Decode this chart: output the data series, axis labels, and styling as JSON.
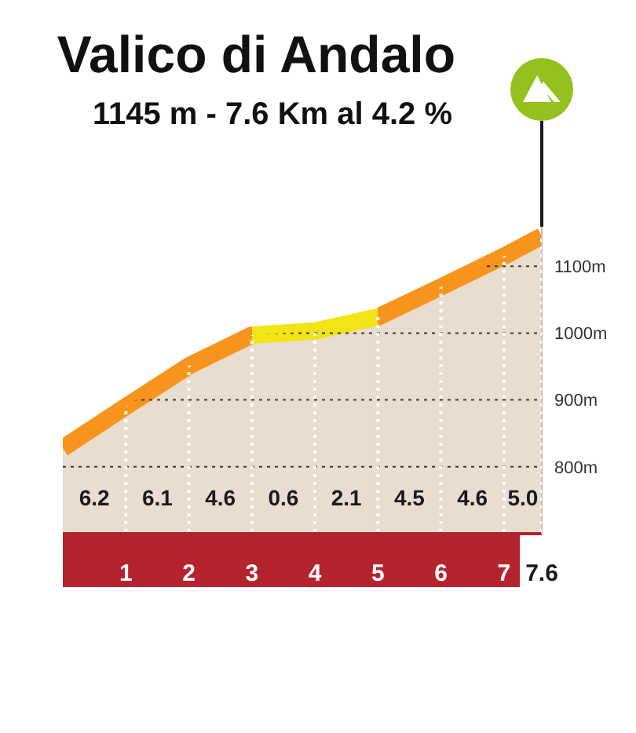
{
  "chart_data": {
    "type": "area",
    "title": "Valico di Andalo",
    "subtitle": "1145 m - 7.6 Km al 4.2 %",
    "x": [
      0,
      1,
      2,
      3,
      4,
      5,
      6,
      7,
      7.6
    ],
    "values": [
      828,
      890,
      951,
      997,
      1003,
      1024,
      1069,
      1115,
      1145
    ],
    "color": "#e8ddcf",
    "colors": [
      null,
      "#f7941d",
      "#f7941d",
      "#f7941d",
      "#f2e416",
      "#f2e416",
      "#f7941d",
      "#f7941d",
      "#f7941d"
    ],
    "xlim": [
      0,
      7.6
    ],
    "xticks": [
      1,
      2,
      3,
      4,
      5,
      6,
      7,
      7.6
    ],
    "ylim": [
      700,
      1200
    ],
    "yticks": [
      {
        "value": 800,
        "label": "800m"
      },
      {
        "value": 900,
        "label": "900m"
      },
      {
        "value": 1000,
        "label": "1000m"
      },
      {
        "value": 1100,
        "label": "1100m"
      }
    ],
    "grid": true,
    "annotations": [
      "6.2",
      "6.1",
      "4.6",
      "0.6",
      "2.1",
      "4.5",
      "4.6",
      "5.0"
    ]
  }
}
